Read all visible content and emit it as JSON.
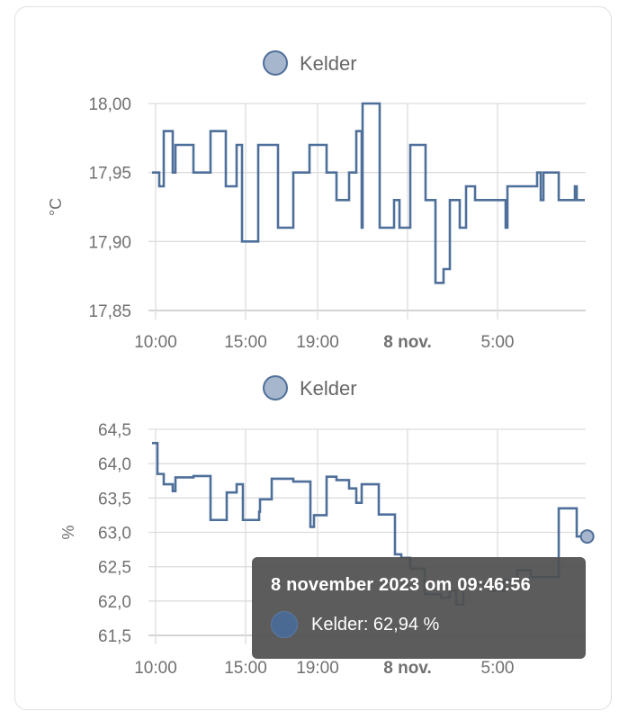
{
  "colors": {
    "line": "#4e6f9a",
    "legend_fill": "#a6b6cc",
    "grid": "#dddddd",
    "axis_text": "#707070",
    "tooltip_bg": "#505050"
  },
  "chart_data": [
    {
      "type": "line",
      "step": true,
      "legend": "Kelder",
      "legend_placement": "top",
      "ylabel": "°C",
      "ylim": [
        17.85,
        18.0
      ],
      "yticks": [
        "18,00",
        "17,95",
        "17,90",
        "17,85"
      ],
      "ytick_values": [
        18.0,
        17.95,
        17.9,
        17.85
      ],
      "xlim": [
        "2023-11-07T09:48",
        "2023-11-08T09:51"
      ],
      "xticks": [
        {
          "label": "10:00",
          "t": "2023-11-07T10:00",
          "bold": false
        },
        {
          "label": "15:00",
          "t": "2023-11-07T15:00",
          "bold": false
        },
        {
          "label": "19:00",
          "t": "2023-11-07T19:00",
          "bold": false
        },
        {
          "label": "8 nov.",
          "t": "2023-11-08T00:00",
          "bold": true
        },
        {
          "label": "5:00",
          "t": "2023-11-08T05:00",
          "bold": false
        }
      ],
      "grid": true,
      "series": [
        {
          "name": "Kelder",
          "points": [
            [
              "2023-11-07T09:48",
              17.95
            ],
            [
              "2023-11-07T10:12",
              17.94
            ],
            [
              "2023-11-07T10:27",
              17.98
            ],
            [
              "2023-11-07T10:57",
              17.95
            ],
            [
              "2023-11-07T11:06",
              17.97
            ],
            [
              "2023-11-07T12:06",
              17.95
            ],
            [
              "2023-11-07T13:03",
              17.98
            ],
            [
              "2023-11-07T13:54",
              17.94
            ],
            [
              "2023-11-07T14:30",
              17.97
            ],
            [
              "2023-11-07T14:48",
              17.9
            ],
            [
              "2023-11-07T15:42",
              17.97
            ],
            [
              "2023-11-07T16:48",
              17.91
            ],
            [
              "2023-11-07T17:39",
              17.95
            ],
            [
              "2023-11-07T18:33",
              17.97
            ],
            [
              "2023-11-07T19:30",
              17.95
            ],
            [
              "2023-11-07T20:03",
              17.93
            ],
            [
              "2023-11-07T20:45",
              17.95
            ],
            [
              "2023-11-07T21:09",
              17.98
            ],
            [
              "2023-11-07T21:27",
              17.91
            ],
            [
              "2023-11-07T21:30",
              18.0
            ],
            [
              "2023-11-07T22:27",
              17.91
            ],
            [
              "2023-11-07T23:15",
              17.93
            ],
            [
              "2023-11-07T23:33",
              17.91
            ],
            [
              "2023-11-08T00:09",
              17.97
            ],
            [
              "2023-11-08T01:00",
              17.93
            ],
            [
              "2023-11-08T01:33",
              17.87
            ],
            [
              "2023-11-08T02:00",
              17.88
            ],
            [
              "2023-11-08T02:21",
              17.93
            ],
            [
              "2023-11-08T02:54",
              17.91
            ],
            [
              "2023-11-08T03:15",
              17.94
            ],
            [
              "2023-11-08T03:45",
              17.93
            ],
            [
              "2023-11-08T05:27",
              17.91
            ],
            [
              "2023-11-08T05:33",
              17.94
            ],
            [
              "2023-11-08T07:12",
              17.95
            ],
            [
              "2023-11-08T07:24",
              17.93
            ],
            [
              "2023-11-08T07:33",
              17.95
            ],
            [
              "2023-11-08T08:24",
              17.93
            ],
            [
              "2023-11-08T09:18",
              17.94
            ],
            [
              "2023-11-08T09:24",
              17.93
            ],
            [
              "2023-11-08T09:51",
              17.93
            ]
          ]
        }
      ]
    },
    {
      "type": "line",
      "step": true,
      "legend": "Kelder",
      "legend_placement": "top",
      "ylabel": "%",
      "ylim": [
        61.5,
        64.5
      ],
      "yticks": [
        "64,5",
        "64,0",
        "63,5",
        "63,0",
        "62,5",
        "62,0",
        "61,5"
      ],
      "ytick_values": [
        64.5,
        64.0,
        63.5,
        63.0,
        62.5,
        62.0,
        61.5
      ],
      "xlim": [
        "2023-11-07T09:48",
        "2023-11-08T09:51"
      ],
      "xticks": [
        {
          "label": "10:00",
          "t": "2023-11-07T10:00",
          "bold": false
        },
        {
          "label": "15:00",
          "t": "2023-11-07T15:00",
          "bold": false
        },
        {
          "label": "19:00",
          "t": "2023-11-07T19:00",
          "bold": false
        },
        {
          "label": "8 nov.",
          "t": "2023-11-08T00:00",
          "bold": true
        },
        {
          "label": "5:00",
          "t": "2023-11-08T05:00",
          "bold": false
        }
      ],
      "grid": true,
      "series": [
        {
          "name": "Kelder",
          "points": [
            [
              "2023-11-07T09:48",
              64.3
            ],
            [
              "2023-11-07T10:06",
              63.85
            ],
            [
              "2023-11-07T10:27",
              63.7
            ],
            [
              "2023-11-07T10:57",
              63.6
            ],
            [
              "2023-11-07T11:06",
              63.8
            ],
            [
              "2023-11-07T12:06",
              63.82
            ],
            [
              "2023-11-07T13:03",
              63.18
            ],
            [
              "2023-11-07T13:57",
              63.58
            ],
            [
              "2023-11-07T14:30",
              63.7
            ],
            [
              "2023-11-07T14:51",
              63.18
            ],
            [
              "2023-11-07T15:45",
              63.3
            ],
            [
              "2023-11-07T15:48",
              63.48
            ],
            [
              "2023-11-07T16:27",
              63.78
            ],
            [
              "2023-11-07T17:39",
              63.74
            ],
            [
              "2023-11-07T18:36",
              63.08
            ],
            [
              "2023-11-07T18:48",
              63.25
            ],
            [
              "2023-11-07T19:30",
              63.81
            ],
            [
              "2023-11-07T20:03",
              63.76
            ],
            [
              "2023-11-07T20:45",
              63.64
            ],
            [
              "2023-11-07T21:09",
              63.43
            ],
            [
              "2023-11-07T21:27",
              63.7
            ],
            [
              "2023-11-07T22:24",
              63.26
            ],
            [
              "2023-11-07T23:18",
              62.68
            ],
            [
              "2023-11-07T23:39",
              62.63
            ],
            [
              "2023-11-08T00:09",
              62.47
            ],
            [
              "2023-11-08T00:57",
              62.1
            ],
            [
              "2023-11-08T01:51",
              62.05
            ],
            [
              "2023-11-08T02:21",
              62.15
            ],
            [
              "2023-11-08T02:42",
              61.95
            ],
            [
              "2023-11-08T03:06",
              62.3
            ],
            [
              "2023-11-08T03:36",
              62.25
            ],
            [
              "2023-11-08T04:36",
              62.15
            ],
            [
              "2023-11-08T05:21",
              62.3
            ],
            [
              "2023-11-08T06:06",
              62.45
            ],
            [
              "2023-11-08T06:51",
              62.35
            ],
            [
              "2023-11-08T08:24",
              63.35
            ],
            [
              "2023-11-08T09:24",
              62.94
            ],
            [
              "2023-11-08T09:51",
              62.94
            ]
          ]
        }
      ],
      "highlight_point": [
        "2023-11-08T09:46:56",
        62.94
      ]
    }
  ],
  "tooltip": {
    "title": "8 november 2023 om 09:46:56",
    "row": "Kelder: 62,94 %"
  }
}
